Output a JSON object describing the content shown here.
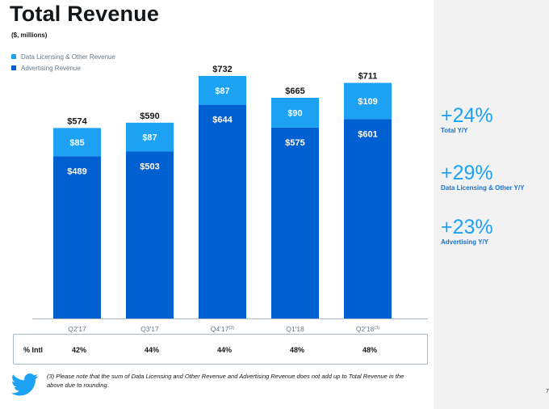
{
  "header": {
    "title": "Total Revenue",
    "subtitle": "($, millions)"
  },
  "chart_data": {
    "type": "bar",
    "stacked": true,
    "categories": [
      "Q2'17",
      "Q3'17",
      "Q4'17",
      "Q1'18",
      "Q2'18"
    ],
    "category_footnotes": [
      "",
      "",
      "(3)",
      "",
      "(3)"
    ],
    "series": [
      {
        "name": "Advertising Revenue",
        "values": [
          489,
          503,
          644,
          575,
          601
        ],
        "labels": [
          "$489",
          "$503",
          "$644",
          "$575",
          "$601"
        ],
        "color": "#005fd1"
      },
      {
        "name": "Data Licensing & Other Revenue",
        "values": [
          85,
          87,
          87,
          90,
          109
        ],
        "labels": [
          "$85",
          "$87",
          "$87",
          "$90",
          "$109"
        ],
        "color": "#1da1f2"
      }
    ],
    "totals": [
      574,
      590,
      732,
      665,
      711
    ],
    "total_labels": [
      "$574",
      "$590",
      "$732",
      "$665",
      "$711"
    ],
    "ylim": [
      0,
      760
    ],
    "grid": false,
    "legend_position": "top-left",
    "legend": [
      {
        "label": "Data Licensing & Other Revenue",
        "color": "#1da1f2"
      },
      {
        "label": "Advertising Revenue",
        "color": "#005fd1"
      }
    ]
  },
  "intl_table": {
    "label": "% Intl",
    "values": [
      "42%",
      "44%",
      "44%",
      "48%",
      "48%"
    ]
  },
  "stats": [
    {
      "value": "+24%",
      "label": "Total Y/Y"
    },
    {
      "value": "+29%",
      "label": "Data Licensing & Other Y/Y"
    },
    {
      "value": "+23%",
      "label": "Advertising Y/Y"
    }
  ],
  "footnote": "(3) Please note that the sum of Data Licensing and Other Revenue and Advertising Revenue does not add up to Total Revenue in the above due to rounding.",
  "page_number": "7",
  "icons": {
    "logo": "twitter-bird-icon"
  },
  "colors": {
    "accent": "#1da1f2",
    "primary": "#005fd1",
    "label": "#1d71c9"
  }
}
